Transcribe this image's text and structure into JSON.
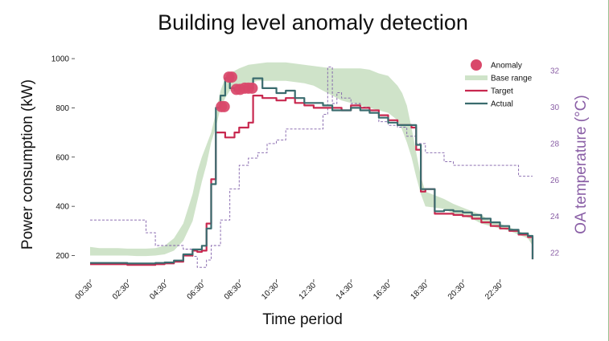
{
  "chart_data": {
    "type": "line",
    "title": "Building level anomaly detection",
    "xlabel": "Time period",
    "ylabel": "Power consumption (kW)",
    "y2label": "OA temperature (°C)",
    "ylim": [
      130,
      1010
    ],
    "y2lim": [
      20.9,
      32.8
    ],
    "yticks": [
      {
        "value": 200,
        "label": "200"
      },
      {
        "value": 400,
        "label": "400"
      },
      {
        "value": 600,
        "label": "600"
      },
      {
        "value": 800,
        "label": "800"
      },
      {
        "value": 1000,
        "label": "1000"
      }
    ],
    "y2ticks": [
      {
        "value": 22,
        "label": "22"
      },
      {
        "value": 24,
        "label": "24"
      },
      {
        "value": 26,
        "label": "26"
      },
      {
        "value": 28,
        "label": "28"
      },
      {
        "value": 30,
        "label": "30"
      },
      {
        "value": 32,
        "label": "32"
      }
    ],
    "xlim": [
      0.5,
      24.25
    ],
    "xticks": [
      {
        "value": 0.5,
        "label": "00:30"
      },
      {
        "value": 2.5,
        "label": "02:30"
      },
      {
        "value": 4.5,
        "label": "04:30"
      },
      {
        "value": 6.5,
        "label": "06:30"
      },
      {
        "value": 8.5,
        "label": "08:30"
      },
      {
        "value": 10.5,
        "label": "10:30"
      },
      {
        "value": 12.5,
        "label": "12:30"
      },
      {
        "value": 14.5,
        "label": "14:30"
      },
      {
        "value": 16.5,
        "label": "16:30"
      },
      {
        "value": 18.5,
        "label": "18:30"
      },
      {
        "value": 20.5,
        "label": "20:30"
      },
      {
        "value": 22.5,
        "label": "22:30"
      }
    ],
    "legend": {
      "placement": "top-right",
      "entries": [
        {
          "name": "Anomaly",
          "kind": "marker",
          "color": "#d9486a"
        },
        {
          "name": "Base range",
          "kind": "band",
          "color": "#cfe3c9"
        },
        {
          "name": "Target",
          "kind": "line",
          "color": "#c8284f"
        },
        {
          "name": "Actual",
          "kind": "line",
          "color": "#3a6b6e"
        }
      ]
    },
    "base_range": {
      "name": "Base range",
      "color": "#cfe3c9",
      "x": [
        0.5,
        1,
        1.5,
        2,
        2.5,
        3,
        3.5,
        4,
        4.5,
        5,
        5.5,
        6,
        6.25,
        6.5,
        6.75,
        7,
        7.25,
        7.5,
        7.75,
        8,
        8.5,
        9,
        9.5,
        10,
        10.5,
        11,
        11.5,
        12,
        12.5,
        13,
        13.5,
        14,
        14.5,
        15,
        15.5,
        16,
        16.5,
        17,
        17.25,
        17.5,
        17.75,
        18,
        18.25,
        18.5,
        19,
        19.5,
        20,
        20.5,
        21,
        21.5,
        22,
        22.5,
        23,
        23.5,
        24,
        24.25
      ],
      "lower": [
        200,
        200,
        200,
        200,
        200,
        198,
        198,
        200,
        205,
        220,
        260,
        340,
        420,
        500,
        570,
        660,
        720,
        800,
        840,
        870,
        890,
        900,
        910,
        910,
        910,
        910,
        905,
        900,
        890,
        870,
        850,
        830,
        820,
        810,
        800,
        790,
        780,
        750,
        710,
        660,
        600,
        520,
        450,
        400,
        395,
        390,
        370,
        360,
        350,
        330,
        320,
        310,
        300,
        285,
        270,
        240
      ],
      "upper": [
        235,
        230,
        230,
        230,
        228,
        228,
        228,
        230,
        240,
        270,
        330,
        450,
        540,
        600,
        650,
        700,
        780,
        870,
        920,
        940,
        960,
        975,
        980,
        985,
        985,
        985,
        980,
        975,
        970,
        965,
        960,
        960,
        960,
        960,
        955,
        940,
        930,
        890,
        860,
        810,
        720,
        620,
        520,
        460,
        445,
        430,
        410,
        395,
        380,
        365,
        340,
        330,
        315,
        300,
        280,
        265
      ]
    },
    "series": [
      {
        "name": "Target",
        "color": "#c8284f",
        "x": [
          0.5,
          1,
          1.5,
          2,
          2.5,
          3,
          3.5,
          4,
          4.5,
          5,
          5.5,
          6,
          6.25,
          6.5,
          6.75,
          7,
          7.25,
          7.5,
          7.75,
          8,
          8.25,
          8.5,
          8.75,
          9,
          9.25,
          9.5,
          9.75,
          10,
          10.5,
          11,
          11.5,
          12,
          12.5,
          13,
          13.5,
          14,
          14.5,
          15,
          15.5,
          16,
          16.5,
          17,
          17.25,
          17.5,
          17.75,
          18,
          18.25,
          18.5,
          19,
          19.5,
          20,
          20.5,
          21,
          21.5,
          22,
          22.5,
          23,
          23.5,
          24,
          24.25
        ],
        "values": [
          165,
          165,
          165,
          165,
          162,
          162,
          162,
          165,
          168,
          175,
          200,
          220,
          215,
          220,
          330,
          510,
          700,
          700,
          680,
          680,
          700,
          720,
          720,
          740,
          850,
          850,
          840,
          840,
          830,
          840,
          820,
          810,
          800,
          800,
          800,
          790,
          810,
          800,
          790,
          770,
          750,
          730,
          730,
          730,
          720,
          630,
          460,
          470,
          370,
          370,
          365,
          360,
          350,
          335,
          320,
          310,
          300,
          285,
          275,
          185
        ]
      },
      {
        "name": "Actual",
        "color": "#3a6b6e",
        "x": [
          0.5,
          1,
          1.5,
          2,
          2.5,
          3,
          3.5,
          4,
          4.5,
          5,
          5.5,
          6,
          6.25,
          6.5,
          6.75,
          7,
          7.25,
          7.5,
          7.75,
          8,
          8.25,
          8.5,
          8.75,
          9,
          9.25,
          9.5,
          9.75,
          10,
          10.5,
          11,
          11.5,
          12,
          12.5,
          13,
          13.5,
          14,
          14.5,
          15,
          15.5,
          16,
          16.5,
          17,
          17.25,
          17.5,
          17.75,
          18,
          18.25,
          18.5,
          19,
          19.5,
          20,
          20.5,
          21,
          21.5,
          22,
          22.5,
          23,
          23.5,
          24,
          24.25
        ],
        "values": [
          170,
          170,
          170,
          170,
          168,
          168,
          168,
          170,
          172,
          180,
          205,
          225,
          225,
          240,
          310,
          490,
          800,
          850,
          920,
          880,
          870,
          880,
          885,
          880,
          920,
          920,
          880,
          880,
          860,
          870,
          840,
          820,
          820,
          810,
          790,
          790,
          800,
          790,
          780,
          760,
          740,
          730,
          730,
          730,
          730,
          650,
          470,
          470,
          380,
          385,
          380,
          375,
          365,
          350,
          335,
          320,
          305,
          290,
          280,
          185
        ]
      },
      {
        "name": "OA temperature",
        "axis": "right",
        "style": "dashed",
        "color": "#7f5ea8",
        "x": [
          0.5,
          1,
          1.5,
          2,
          2.5,
          3,
          3.5,
          4,
          4.5,
          5,
          5.5,
          6,
          6.25,
          6.5,
          6.75,
          7,
          7.5,
          8,
          8.5,
          9,
          9.5,
          10,
          10.5,
          11,
          11.5,
          12,
          12.5,
          13,
          13.25,
          13.5,
          13.75,
          14,
          14.5,
          15,
          15.5,
          16,
          16.5,
          17,
          17.5,
          18,
          18.5,
          19,
          19.5,
          20,
          20.5,
          21,
          21.5,
          22,
          22.5,
          23,
          23.5,
          24,
          24.25
        ],
        "values": [
          23.8,
          23.8,
          23.8,
          23.8,
          23.8,
          23.8,
          23.1,
          22.4,
          22.4,
          22.4,
          22.2,
          21.8,
          21.2,
          21.2,
          21.6,
          22.4,
          23.8,
          25.5,
          26.8,
          27.2,
          27.5,
          28.0,
          28.2,
          28.8,
          28.8,
          28.8,
          28.8,
          29.6,
          32.2,
          30.2,
          30.8,
          30.5,
          30.2,
          30.0,
          29.8,
          29.2,
          29.0,
          28.9,
          28.4,
          28.0,
          27.5,
          27.5,
          27.0,
          26.8,
          26.8,
          26.8,
          26.8,
          26.8,
          26.8,
          26.8,
          26.2,
          26.2,
          26.2
        ]
      }
    ],
    "anomalies": {
      "name": "Anomaly",
      "color": "#d9486a",
      "x": [
        7.55,
        7.7,
        7.95,
        8.1,
        8.35,
        8.55,
        8.8,
        9.0,
        9.2
      ],
      "values": [
        805,
        805,
        925,
        925,
        875,
        875,
        880,
        880,
        880
      ]
    }
  }
}
